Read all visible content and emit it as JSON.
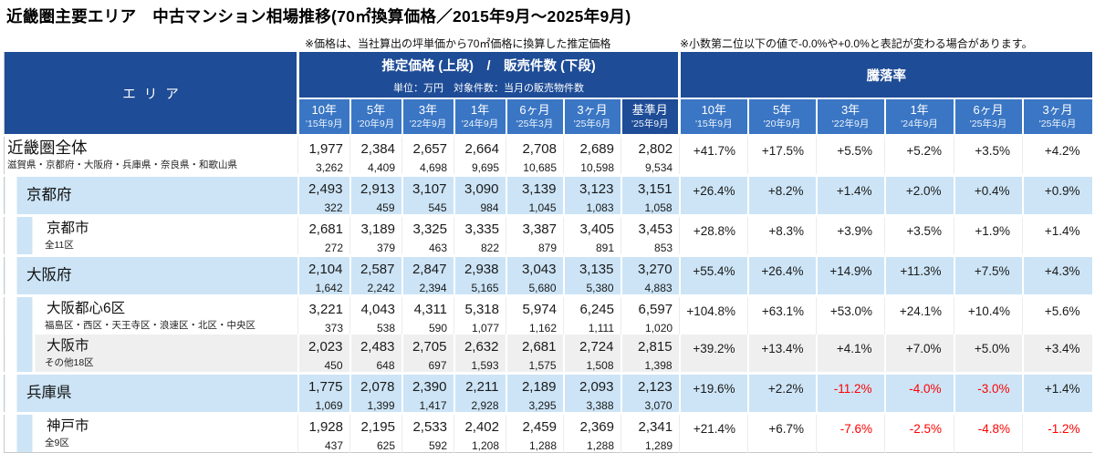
{
  "title": "近畿圏主要エリア　中古マンション相場推移(70㎡換算価格／2015年9月～2025年9月)",
  "notes": {
    "price_note": "※価格は、当社算出の坪単価から70㎡価格に換算した推定価格",
    "decimal_note": "※小数第二位以下の値で-0.0%や+0.0%と表記が変わる場合があります。"
  },
  "colors": {
    "header_dark_blue": "#1E4C96",
    "header_mid_blue": "#3A76C4",
    "row_light_blue": "#CCE4F6",
    "row_gray": "#EFEFEF",
    "negative_rate_red": "#FF0000"
  },
  "header": {
    "area_label": "エリア",
    "price_group_title": "推定価格 (上段)　/　販売件数 (下段)",
    "price_group_sub": "単位：万円　対象件数：当月の販売物件数",
    "rate_group_title": "騰落率"
  },
  "chart_data": {
    "type": "table",
    "title": "近畿圏主要エリア　中古マンション相場推移(70㎡換算価格／2015年9月～2025年9月)",
    "price_periods": [
      {
        "label": "10年",
        "date": "'15年9月"
      },
      {
        "label": "5年",
        "date": "'20年9月"
      },
      {
        "label": "3年",
        "date": "'22年9月"
      },
      {
        "label": "1年",
        "date": "'24年9月"
      },
      {
        "label": "6ヶ月",
        "date": "'25年3月"
      },
      {
        "label": "3ヶ月",
        "date": "'25年6月"
      },
      {
        "label": "基準月",
        "date": "'25年9月"
      }
    ],
    "rate_periods": [
      {
        "label": "10年",
        "date": "'15年9月"
      },
      {
        "label": "5年",
        "date": "'20年9月"
      },
      {
        "label": "3年",
        "date": "'22年9月"
      },
      {
        "label": "1年",
        "date": "'24年9月"
      },
      {
        "label": "6ヶ月",
        "date": "'25年3月"
      },
      {
        "label": "3ヶ月",
        "date": "'25年6月"
      }
    ],
    "rows": [
      {
        "name": "近畿圏全体",
        "subtitle": "滋賀県・京都府・大阪府・兵庫県・奈良県・和歌山県",
        "level": 0,
        "style": "plain",
        "prices": [
          "1,977",
          "2,384",
          "2,657",
          "2,664",
          "2,708",
          "2,689",
          "2,802"
        ],
        "counts": [
          "3,262",
          "4,409",
          "4,698",
          "9,695",
          "10,685",
          "10,598",
          "9,534"
        ],
        "rates": [
          "+41.7%",
          "+17.5%",
          "+5.5%",
          "+5.2%",
          "+3.5%",
          "+4.2%"
        ]
      },
      {
        "name": "京都府",
        "subtitle": "",
        "level": 1,
        "style": "blue",
        "prices": [
          "2,493",
          "2,913",
          "3,107",
          "3,090",
          "3,139",
          "3,123",
          "3,151"
        ],
        "counts": [
          "322",
          "459",
          "545",
          "984",
          "1,045",
          "1,083",
          "1,058"
        ],
        "rates": [
          "+26.4%",
          "+8.2%",
          "+1.4%",
          "+2.0%",
          "+0.4%",
          "+0.9%"
        ]
      },
      {
        "name": "京都市",
        "subtitle": "全11区",
        "level": 2,
        "style": "city",
        "prices": [
          "2,681",
          "3,189",
          "3,325",
          "3,335",
          "3,387",
          "3,405",
          "3,453"
        ],
        "counts": [
          "272",
          "379",
          "463",
          "822",
          "879",
          "891",
          "853"
        ],
        "rates": [
          "+28.8%",
          "+8.3%",
          "+3.9%",
          "+3.5%",
          "+1.9%",
          "+1.4%"
        ]
      },
      {
        "name": "大阪府",
        "subtitle": "",
        "level": 1,
        "style": "blue",
        "prices": [
          "2,104",
          "2,587",
          "2,847",
          "2,938",
          "3,043",
          "3,135",
          "3,270"
        ],
        "counts": [
          "1,642",
          "2,242",
          "2,394",
          "5,165",
          "5,680",
          "5,380",
          "4,883"
        ],
        "rates": [
          "+55.4%",
          "+26.4%",
          "+14.9%",
          "+11.3%",
          "+7.5%",
          "+4.3%"
        ]
      },
      {
        "name": "大阪都心6区",
        "subtitle": "福島区・西区・天王寺区・浪速区・北区・中央区",
        "level": 2,
        "style": "city",
        "prices": [
          "3,221",
          "4,043",
          "4,311",
          "5,318",
          "5,974",
          "6,245",
          "6,597"
        ],
        "counts": [
          "373",
          "538",
          "590",
          "1,077",
          "1,162",
          "1,111",
          "1,020"
        ],
        "rates": [
          "+104.8%",
          "+63.1%",
          "+53.0%",
          "+24.1%",
          "+10.4%",
          "+5.6%"
        ]
      },
      {
        "name": "大阪市",
        "subtitle": "その他18区",
        "level": 2,
        "style": "gray",
        "prices": [
          "2,023",
          "2,483",
          "2,705",
          "2,632",
          "2,681",
          "2,724",
          "2,815"
        ],
        "counts": [
          "450",
          "648",
          "697",
          "1,593",
          "1,575",
          "1,508",
          "1,398"
        ],
        "rates": [
          "+39.2%",
          "+13.4%",
          "+4.1%",
          "+7.0%",
          "+5.0%",
          "+3.4%"
        ]
      },
      {
        "name": "兵庫県",
        "subtitle": "",
        "level": 1,
        "style": "blue",
        "prices": [
          "1,775",
          "2,078",
          "2,390",
          "2,211",
          "2,189",
          "2,093",
          "2,123"
        ],
        "counts": [
          "1,069",
          "1,399",
          "1,417",
          "2,928",
          "3,295",
          "3,388",
          "3,070"
        ],
        "rates": [
          "+19.6%",
          "+2.2%",
          "-11.2%",
          "-4.0%",
          "-3.0%",
          "+1.4%"
        ]
      },
      {
        "name": "神戸市",
        "subtitle": "全9区",
        "level": 2,
        "style": "city",
        "prices": [
          "1,928",
          "2,195",
          "2,533",
          "2,402",
          "2,459",
          "2,369",
          "2,341"
        ],
        "counts": [
          "437",
          "625",
          "592",
          "1,208",
          "1,288",
          "1,288",
          "1,289"
        ],
        "rates": [
          "+21.4%",
          "+6.7%",
          "-7.6%",
          "-2.5%",
          "-4.8%",
          "-1.2%"
        ]
      }
    ]
  }
}
